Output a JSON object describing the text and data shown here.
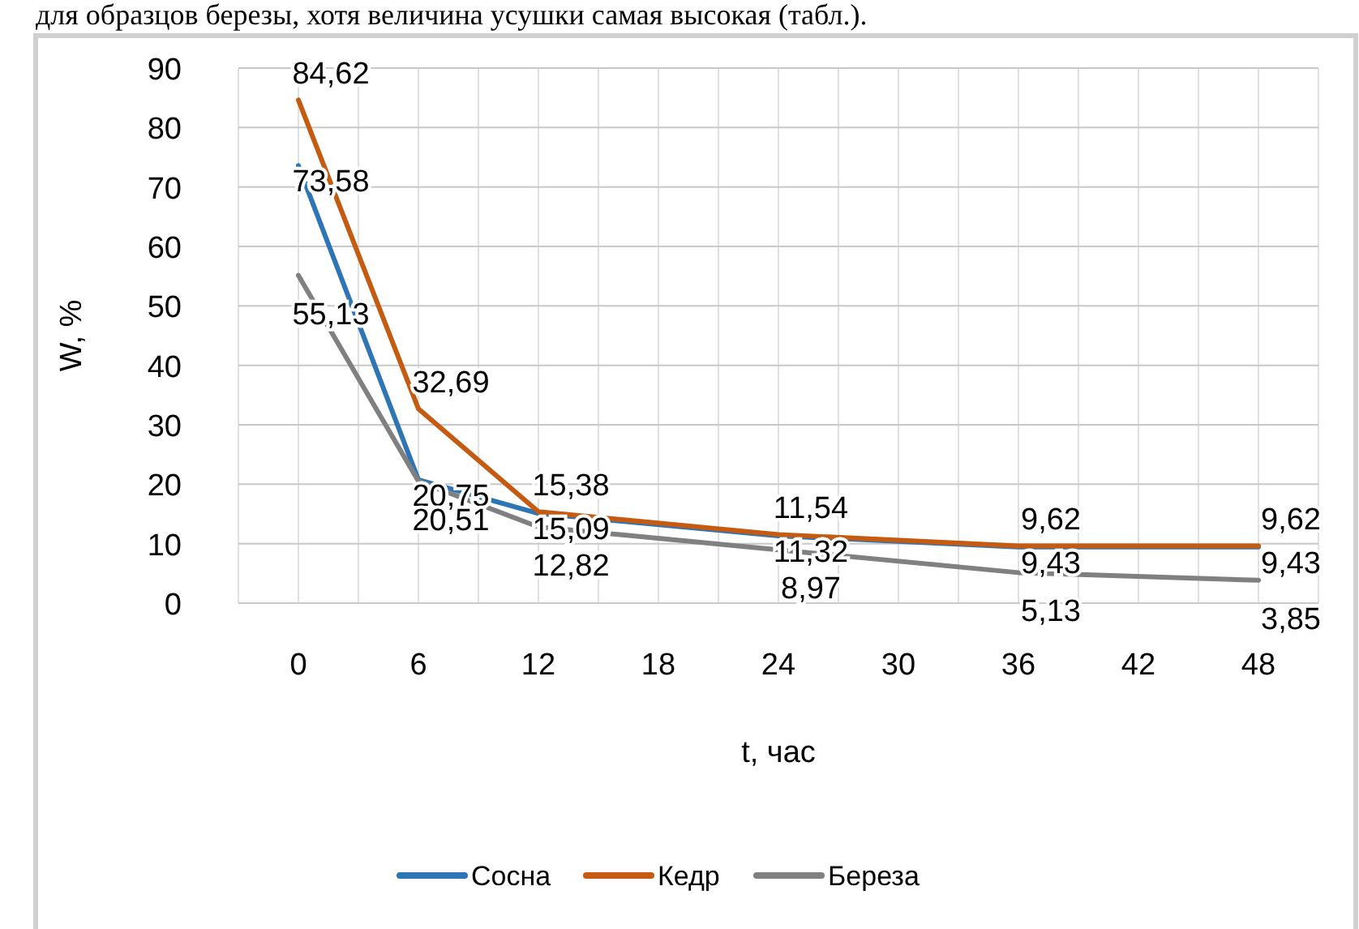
{
  "chart_data": {
    "type": "line",
    "xlabel": "t, час",
    "ylabel": "W, %",
    "annotations": [
      "для образцов березы, хотя величина усушки самая высокая (табл.)."
    ],
    "x": [
      0,
      6,
      12,
      24,
      36,
      48
    ],
    "xlim": [
      -3,
      51
    ],
    "xticks": [
      {
        "value": -3,
        "label": null
      },
      0,
      {
        "value": 3,
        "label": null
      },
      6,
      {
        "value": 9,
        "label": null
      },
      12,
      {
        "value": 15,
        "label": null
      },
      18,
      {
        "value": 21,
        "label": null
      },
      24,
      {
        "value": 27,
        "label": null
      },
      30,
      {
        "value": 33,
        "label": null
      },
      36,
      {
        "value": 39,
        "label": null
      },
      42,
      {
        "value": 45,
        "label": null
      },
      48,
      {
        "value": 51,
        "label": null
      }
    ],
    "ylim": [
      0,
      90
    ],
    "yticks": [
      0,
      10,
      20,
      30,
      40,
      50,
      60,
      70,
      80,
      90
    ],
    "grid": true,
    "legend": "bottom",
    "marker": "none",
    "line_style": "solid",
    "series": [
      {
        "name": "Сосна",
        "color": "#2e75b6",
        "values": [
          73.58,
          20.75,
          15.09,
          11.32,
          9.43,
          9.43
        ],
        "value_labels": [
          "73,58",
          "20,75",
          "15,09",
          "11,32",
          "9,43",
          "9,43"
        ]
      },
      {
        "name": "Кедр",
        "color": "#c55a11",
        "values": [
          84.62,
          32.69,
          15.38,
          11.54,
          9.62,
          9.62
        ],
        "value_labels": [
          "84,62",
          "32,69",
          "15,38",
          "11,54",
          "9,62",
          "9,62"
        ]
      },
      {
        "name": "Береза",
        "color": "#808080",
        "values": [
          55.13,
          20.51,
          12.82,
          8.97,
          5.13,
          3.85
        ],
        "value_labels": [
          "55,13",
          "20,51",
          "12,82",
          "8,97",
          "5,13",
          "3,85"
        ]
      }
    ]
  }
}
